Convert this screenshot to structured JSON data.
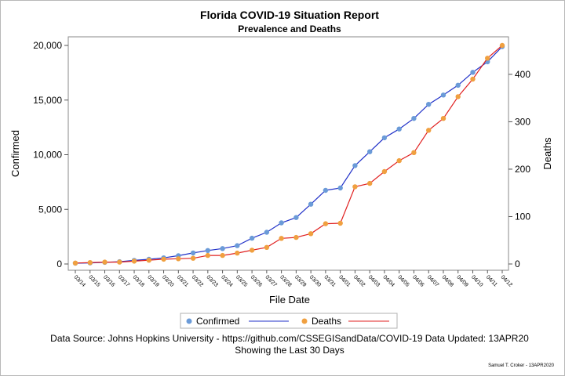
{
  "chart_data": {
    "type": "line",
    "title": "Florida COVID-19 Situation Report",
    "subtitle": "Prevalence and Deaths",
    "xlabel": "File Date",
    "ylabel": "Confirmed",
    "y2label": "Deaths",
    "x": [
      "03/14",
      "03/15",
      "03/16",
      "03/17",
      "03/18",
      "03/19",
      "03/20",
      "03/21",
      "03/22",
      "03/23",
      "03/24",
      "03/25",
      "03/26",
      "03/27",
      "03/28",
      "03/29",
      "03/30",
      "03/31",
      "04/01",
      "04/02",
      "04/03",
      "04/04",
      "04/05",
      "04/06",
      "04/07",
      "04/08",
      "04/09",
      "04/10",
      "04/11",
      "04/12"
    ],
    "yticks": [
      "0",
      "5,000",
      "10,000",
      "15,000",
      "20,000"
    ],
    "y2ticks": [
      "0",
      "100",
      "200",
      "300",
      "400"
    ],
    "ylim": [
      0,
      20000
    ],
    "y2lim": [
      0,
      461
    ],
    "grid": false,
    "legend_position": "bottom",
    "series": [
      {
        "name": "Confirmed",
        "axis": "left",
        "marker_color": "#6b9bd8",
        "line_color": "#2030c8",
        "values": [
          70,
          100,
          150,
          210,
          330,
          430,
          560,
          760,
          1010,
          1230,
          1410,
          1680,
          2360,
          2900,
          3760,
          4250,
          5470,
          6740,
          6950,
          9000,
          10270,
          11550,
          12350,
          13320,
          14610,
          15460,
          16360,
          17540,
          18500,
          19890
        ]
      },
      {
        "name": "Deaths",
        "axis": "right",
        "marker_color": "#f0a040",
        "line_color": "#e02020",
        "values": [
          2,
          3,
          4,
          4,
          6,
          8,
          10,
          11,
          12,
          18,
          18,
          23,
          29,
          35,
          54,
          56,
          64,
          85,
          86,
          163,
          170,
          195,
          218,
          235,
          282,
          307,
          353,
          390,
          434,
          461
        ]
      }
    ],
    "footnotes": [
      "Data Source: Johns Hopkins University - https://github.com/CSSEGISandData/COVID-19  Data Updated: 13APR20",
      "Showing the Last 30 Days"
    ],
    "credit": "Samuel T. Croker - 13APR2020"
  }
}
